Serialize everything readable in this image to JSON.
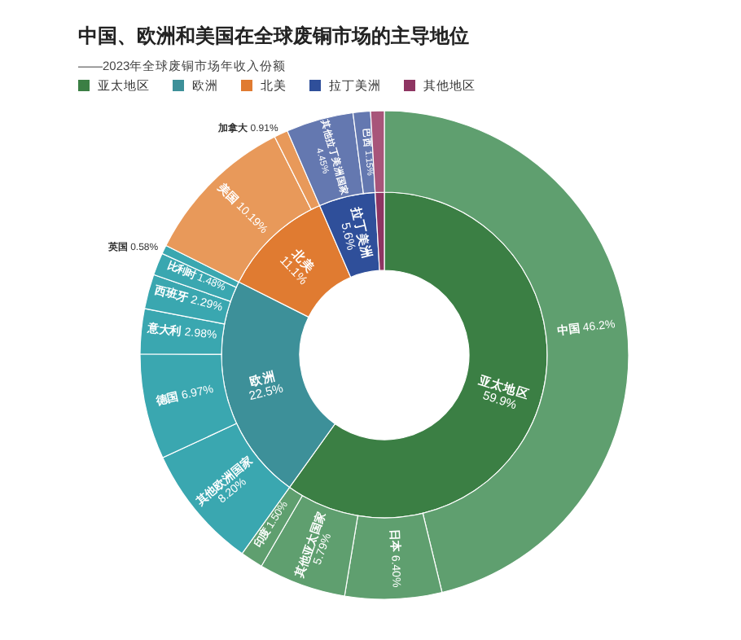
{
  "chart_data": [
    {
      "type": "donut",
      "title": "中国、欧洲和美国在全球废铜市场的主导地位",
      "subtitle": "——2023年全球废铜市场年收入份额",
      "legend": "top left",
      "data_labels": true,
      "categories": [
        "亚太地区",
        "欧洲",
        "北美",
        "拉丁美洲",
        "其他地区"
      ],
      "values": [
        59.9,
        22.5,
        11.1,
        5.6,
        0.9
      ],
      "value_labels": [
        "59.9%",
        "22.5%",
        "11.1%",
        "5.6%",
        null
      ],
      "colors": [
        "#3b7f44",
        "#3d9099",
        "#e07b31",
        "#2f4f9a",
        "#8e3562"
      ]
    },
    {
      "type": "donut",
      "data_labels": true,
      "categories": [
        "中国",
        "日本",
        "其他亚太国家",
        "印度",
        "其他欧洲国家",
        "德国",
        "意大利",
        "西班牙",
        "比利时",
        "英国",
        "美国",
        "加拿大",
        "其他拉丁美洲国家",
        "巴西",
        null
      ],
      "values": [
        46.2,
        6.4,
        5.79,
        1.5,
        8.2,
        6.97,
        2.98,
        2.29,
        1.48,
        0.58,
        10.19,
        0.91,
        4.45,
        1.15,
        0.9
      ],
      "value_labels": [
        "46.2%",
        "6.40%",
        "5.79%",
        "1.50%",
        "8.20%",
        "6.97%",
        "2.98%",
        "2.29%",
        "1.48%",
        "0.58%",
        "10.19%",
        "0.91%",
        "4.45%",
        "1.15%",
        null
      ],
      "colors": [
        "#5f9f6f",
        "#5f9f6f",
        "#5f9f6f",
        "#5f9f6f",
        "#3aa7b0",
        "#3aa7b0",
        "#3aa7b0",
        "#3aa7b0",
        "#3aa7b0",
        "#3aa7b0",
        "#e8995a",
        "#e8995a",
        "#6478b0",
        "#6478b0",
        "#a8557a"
      ]
    }
  ]
}
